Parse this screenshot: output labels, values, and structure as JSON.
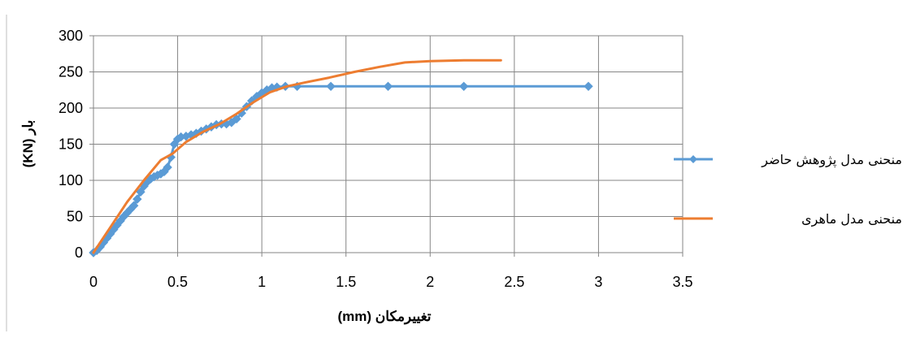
{
  "chart_data": {
    "type": "line",
    "xlabel": "تغییرمکان (mm)",
    "ylabel": "بار (KN)",
    "xlim": [
      0,
      3.5
    ],
    "ylim": [
      0,
      300
    ],
    "x_ticks": [
      0,
      0.5,
      1,
      1.5,
      2,
      2.5,
      3,
      3.5
    ],
    "y_ticks": [
      0,
      50,
      100,
      150,
      200,
      250,
      300
    ],
    "x_tick_labels": [
      "0",
      "0.5",
      "1",
      "1.5",
      "2",
      "2.5",
      "3",
      "3.5"
    ],
    "y_tick_labels": [
      "0",
      "50",
      "100",
      "150",
      "200",
      "250",
      "300"
    ],
    "grid": true,
    "legend_position": "right",
    "series": [
      {
        "name": "منحنی مدل پژوهش حاضر",
        "color": "#5B9BD5",
        "marker": "diamond",
        "points": [
          [
            0,
            0
          ],
          [
            0.02,
            3
          ],
          [
            0.04,
            8
          ],
          [
            0.06,
            14
          ],
          [
            0.08,
            20
          ],
          [
            0.1,
            26
          ],
          [
            0.12,
            32
          ],
          [
            0.14,
            38
          ],
          [
            0.16,
            44
          ],
          [
            0.18,
            50
          ],
          [
            0.2,
            55
          ],
          [
            0.22,
            60
          ],
          [
            0.24,
            65
          ],
          [
            0.26,
            74
          ],
          [
            0.28,
            84
          ],
          [
            0.3,
            92
          ],
          [
            0.32,
            98
          ],
          [
            0.34,
            102
          ],
          [
            0.36,
            105
          ],
          [
            0.38,
            107
          ],
          [
            0.4,
            109
          ],
          [
            0.42,
            112
          ],
          [
            0.44,
            118
          ],
          [
            0.46,
            132
          ],
          [
            0.48,
            150
          ],
          [
            0.5,
            157
          ],
          [
            0.52,
            160
          ],
          [
            0.55,
            161
          ],
          [
            0.58,
            163
          ],
          [
            0.61,
            165
          ],
          [
            0.64,
            168
          ],
          [
            0.67,
            171
          ],
          [
            0.7,
            174
          ],
          [
            0.73,
            177
          ],
          [
            0.76,
            178
          ],
          [
            0.79,
            178
          ],
          [
            0.82,
            180
          ],
          [
            0.85,
            185
          ],
          [
            0.88,
            193
          ],
          [
            0.91,
            202
          ],
          [
            0.94,
            210
          ],
          [
            0.97,
            216
          ],
          [
            1.0,
            221
          ],
          [
            1.03,
            225
          ],
          [
            1.06,
            228
          ],
          [
            1.09,
            229
          ],
          [
            1.14,
            230
          ],
          [
            1.21,
            230
          ],
          [
            1.41,
            230
          ],
          [
            1.75,
            230
          ],
          [
            2.2,
            230
          ],
          [
            2.94,
            230
          ]
        ]
      },
      {
        "name": "منحنی مدل ماهری",
        "color": "#ED7D31",
        "marker": "none",
        "points": [
          [
            0,
            0
          ],
          [
            0.1,
            35
          ],
          [
            0.2,
            70
          ],
          [
            0.3,
            100
          ],
          [
            0.4,
            128
          ],
          [
            0.47,
            137
          ],
          [
            0.55,
            153
          ],
          [
            0.65,
            167
          ],
          [
            0.75,
            178
          ],
          [
            0.85,
            192
          ],
          [
            0.95,
            208
          ],
          [
            1.05,
            222
          ],
          [
            1.15,
            230
          ],
          [
            1.25,
            235
          ],
          [
            1.4,
            242
          ],
          [
            1.55,
            250
          ],
          [
            1.7,
            257
          ],
          [
            1.85,
            263
          ],
          [
            2.0,
            265
          ],
          [
            2.2,
            266
          ],
          [
            2.42,
            266
          ]
        ]
      }
    ]
  }
}
